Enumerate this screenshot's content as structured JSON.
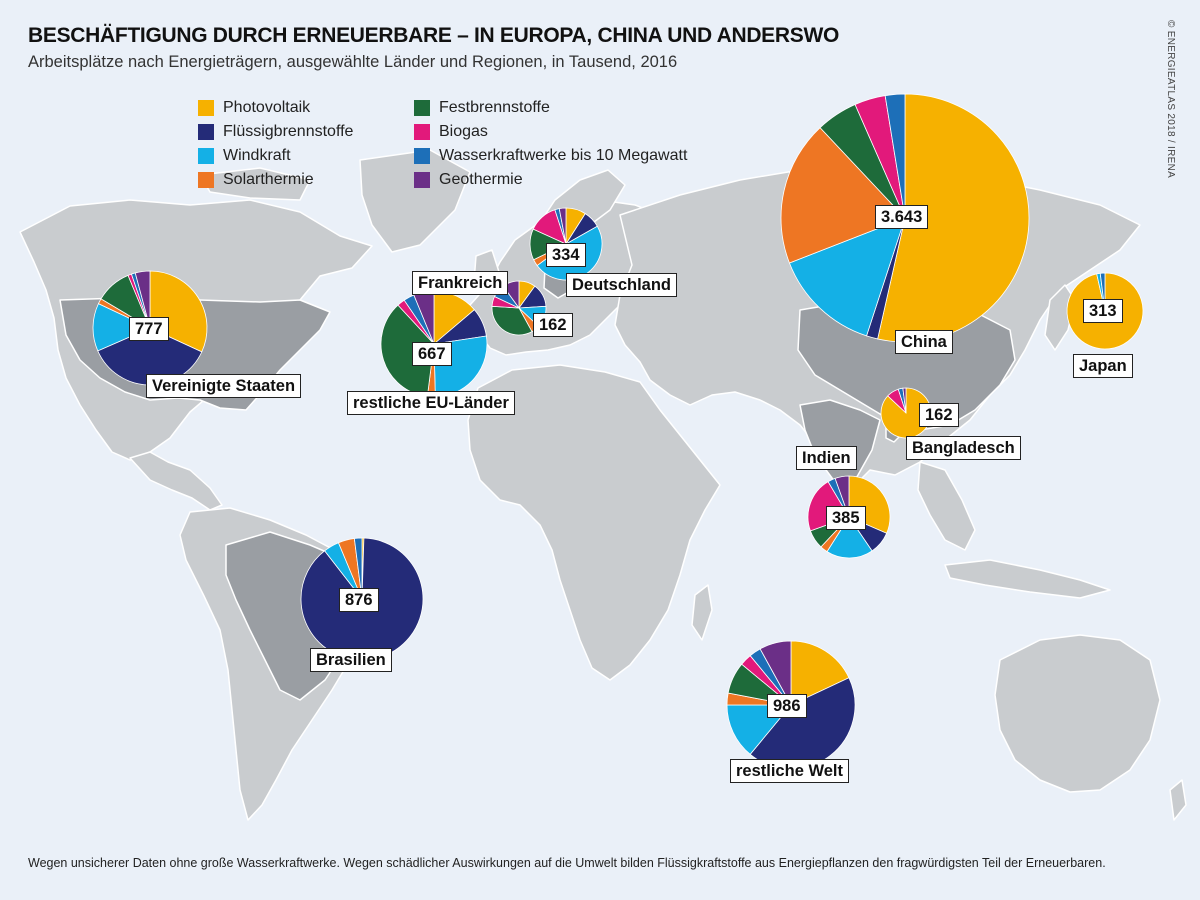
{
  "header": {
    "title": "BESCHÄFTIGUNG DURCH ERNEUERBARE – IN EUROPA, CHINA UND ANDERSWO",
    "subtitle": "Arbeitsplätze nach Energieträgern, ausgewählte Länder und Regionen, in Tausend, 2016",
    "credit": "© ENERGIEATLAS 2018 / IRENA"
  },
  "footer": {
    "note": "Wegen unsicherer Daten ohne große Wasserkraftwerke. Wegen schädlicher Auswirkungen auf die Umwelt bilden Flüssigkraftstoffe aus Energiepflanzen den fragwürdigsten Teil der Erneuerbaren."
  },
  "legend": {
    "items": [
      {
        "label": "Photovoltaik",
        "color": "#f6b100"
      },
      {
        "label": "Flüssigbrennstoffe",
        "color": "#242b78"
      },
      {
        "label": "Windkraft",
        "color": "#14b0e6"
      },
      {
        "label": "Solarthermie",
        "color": "#ee7623"
      },
      {
        "label": "Festbrennstoffe",
        "color": "#1e6b3a"
      },
      {
        "label": "Biogas",
        "color": "#e2197b"
      },
      {
        "label": "Wasserkraftwerke bis 10 Megawatt",
        "color": "#1d6fb8"
      },
      {
        "label": "Geothermie",
        "color": "#6b2f87"
      }
    ]
  },
  "chart_data": {
    "type": "pie",
    "title": "BESCHÄFTIGUNG DURCH ERNEUERBARE – IN EUROPA, CHINA UND ANDERSWO",
    "categories": [
      "Photovoltaik",
      "Flüssigbrennstoffe",
      "Windkraft",
      "Solarthermie",
      "Festbrennstoffe",
      "Biogas",
      "Wasserkraftwerke bis 10 Megawatt",
      "Geothermie"
    ],
    "pies": [
      {
        "name": "China",
        "total": "3.643",
        "values": [
          54.4,
          1.5,
          14.3,
          19.2,
          5.5,
          4.1,
          2.6,
          0
        ]
      },
      {
        "name": "Vereinigte Staaten",
        "total": "777",
        "values": [
          31.4,
          36.0,
          13.4,
          1.5,
          10.0,
          1.0,
          1.1,
          4.1
        ]
      },
      {
        "name": "restliche EU-Länder",
        "total": "667",
        "values": [
          13.8,
          8.8,
          27.0,
          2.4,
          36.1,
          2.4,
          3.3,
          6.2
        ]
      },
      {
        "name": "Deutschland",
        "total": "334",
        "values": [
          9.0,
          7.8,
          48.0,
          3.0,
          14.0,
          13.2,
          2.0,
          3.0
        ]
      },
      {
        "name": "Frankreich",
        "total": "162",
        "values": [
          10.0,
          14.0,
          13.0,
          5.0,
          34.0,
          6.0,
          8.0,
          10.0
        ]
      },
      {
        "name": "Brasilien",
        "total": "876",
        "values": [
          0.5,
          89.0,
          4.2,
          4.3,
          0,
          0,
          2.0,
          0
        ]
      },
      {
        "name": "Japan",
        "total": "313",
        "values": [
          96.5,
          0,
          1.5,
          0,
          0,
          0,
          2.0,
          0
        ]
      },
      {
        "name": "Bangladesch",
        "total": "162",
        "values": [
          87.0,
          0,
          0,
          0,
          0,
          8.0,
          3.0,
          2.0
        ]
      },
      {
        "name": "Indien",
        "total": "385",
        "values": [
          31.5,
          9.0,
          18.5,
          3.0,
          7.5,
          22.0,
          3.0,
          5.5
        ]
      },
      {
        "name": "restliche Welt",
        "total": "986",
        "values": [
          18.0,
          43.0,
          14.0,
          3.0,
          8.0,
          3.0,
          3.0,
          8.0
        ]
      }
    ]
  }
}
